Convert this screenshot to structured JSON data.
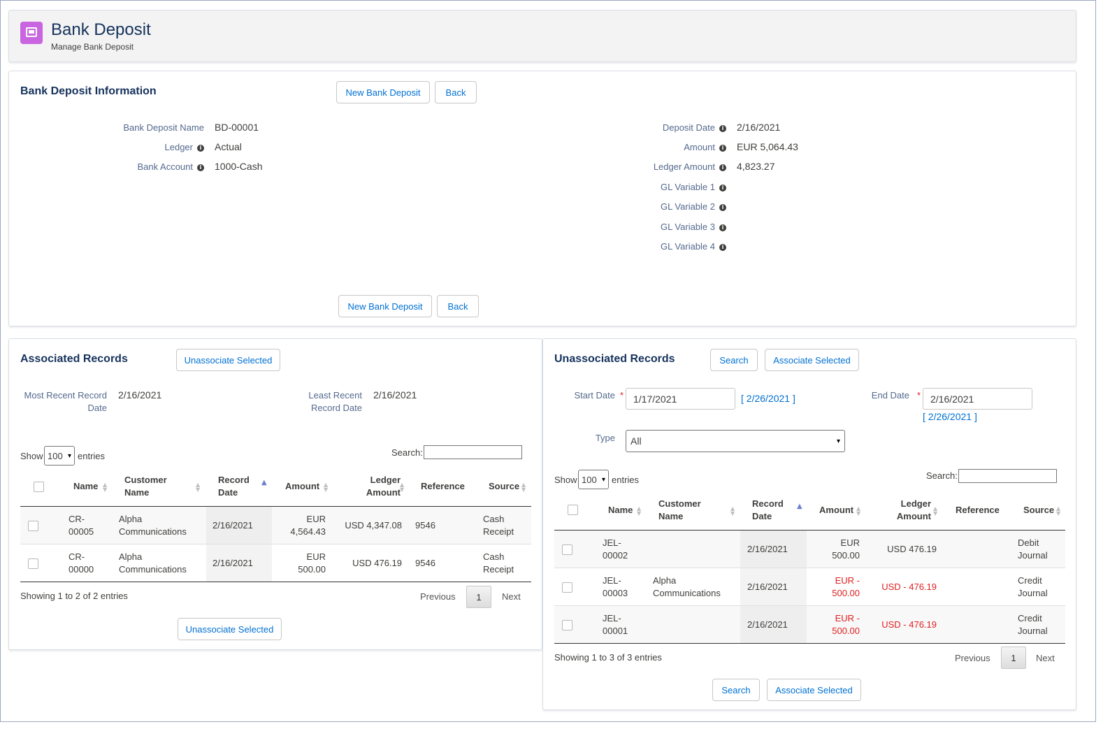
{
  "header": {
    "title": "Bank Deposit",
    "subtitle": "Manage Bank Deposit",
    "icon_color": "#c965e0"
  },
  "info_card": {
    "title": "Bank Deposit Information",
    "new_button": "New Bank Deposit",
    "back_button": "Back",
    "fields_left": [
      {
        "label": "Bank Deposit Name",
        "value": "BD-00001",
        "is_link": false,
        "has_info": false
      },
      {
        "label": "Ledger",
        "value": "Actual",
        "is_link": true,
        "has_info": true
      },
      {
        "label": "Bank Account",
        "value": "1000-Cash",
        "is_link": true,
        "has_info": true
      }
    ],
    "fields_right": [
      {
        "label": "Deposit Date",
        "value": "2/16/2021"
      },
      {
        "label": "Amount",
        "value": "EUR 5,064.43"
      },
      {
        "label": "Ledger Amount",
        "value": "4,823.27"
      },
      {
        "label": "GL Variable 1",
        "value": ""
      },
      {
        "label": "GL Variable 2",
        "value": ""
      },
      {
        "label": "GL Variable 3",
        "value": ""
      },
      {
        "label": "GL Variable 4",
        "value": ""
      }
    ]
  },
  "associated": {
    "title": "Associated Records",
    "unassociate_button": "Unassociate Selected",
    "most_recent_label": "Most Recent Record Date",
    "most_recent_value": "2/16/2021",
    "least_recent_label": "Least Recent Record Date",
    "least_recent_value": "2/16/2021",
    "show_label": "Show",
    "page_size": "100",
    "entries_label": "entries",
    "search_label": "Search:",
    "columns": [
      "Name",
      "Customer Name",
      "Record Date",
      "Amount",
      "Ledger Amount",
      "Reference",
      "Source"
    ],
    "rows": [
      {
        "name": "CR-00005",
        "customer": "Alpha Communications",
        "date": "2/16/2021",
        "amount": "EUR 4,564.43",
        "ledger": "USD 4,347.08",
        "reference": "9546",
        "source": "Cash Receipt"
      },
      {
        "name": "CR-00000",
        "customer": "Alpha Communications",
        "date": "2/16/2021",
        "amount": "EUR 500.00",
        "ledger": "USD 476.19",
        "reference": "9546",
        "source": "Cash Receipt"
      }
    ],
    "showing": "Showing 1 to 2 of 2 entries",
    "previous": "Previous",
    "page": "1",
    "next": "Next"
  },
  "unassociated": {
    "title": "Unassociated Records",
    "search_button": "Search",
    "associate_button": "Associate Selected",
    "start_date_label": "Start Date",
    "start_date_value": "1/17/2021",
    "start_date_link": "[ 2/26/2021 ]",
    "end_date_label": "End Date",
    "end_date_value": "2/16/2021",
    "end_date_link": "[ 2/26/2021 ]",
    "required_mark": "*",
    "type_label": "Type",
    "type_value": "All",
    "show_label": "Show",
    "page_size": "100",
    "entries_label": "entries",
    "search_label": "Search:",
    "columns": [
      "Name",
      "Customer Name",
      "Record Date",
      "Amount",
      "Ledger Amount",
      "Reference",
      "Source"
    ],
    "rows": [
      {
        "name": "JEL-00002",
        "customer": "",
        "date": "2/16/2021",
        "amount": "EUR 500.00",
        "ledger": "USD 476.19",
        "reference": "",
        "source": "Debit Journal",
        "negative": false
      },
      {
        "name": "JEL-00003",
        "customer": "Alpha Communications",
        "date": "2/16/2021",
        "amount": "EUR - 500.00",
        "ledger": "USD - 476.19",
        "reference": "",
        "source": "Credit Journal",
        "negative": true
      },
      {
        "name": "JEL-00001",
        "customer": "",
        "date": "2/16/2021",
        "amount": "EUR - 500.00",
        "ledger": "USD - 476.19",
        "reference": "",
        "source": "Credit Journal",
        "negative": true
      }
    ],
    "showing": "Showing 1 to 3 of 3 entries",
    "previous": "Previous",
    "page": "1",
    "next": "Next"
  },
  "colors": {
    "link": "#0070d2",
    "negative": "#e02020",
    "heading": "#16325c"
  }
}
